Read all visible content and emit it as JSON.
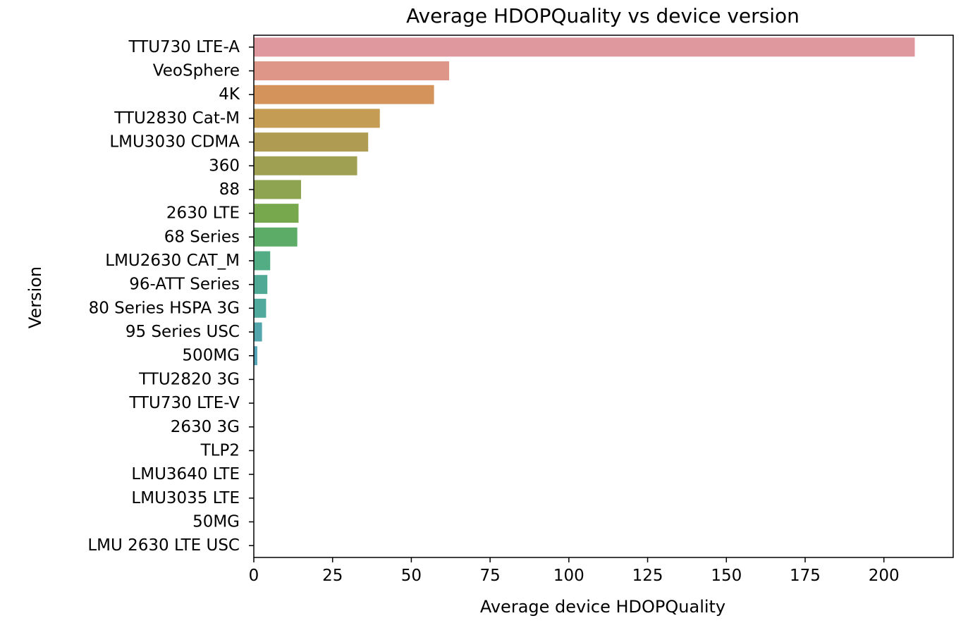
{
  "chart_data": {
    "type": "bar",
    "orientation": "horizontal",
    "title": "Average HDOPQuality vs device version",
    "xlabel": "Average device HDOPQuality",
    "ylabel": "Version",
    "xlim": [
      0,
      222
    ],
    "xticks": [
      0,
      25,
      50,
      75,
      100,
      125,
      150,
      175,
      200
    ],
    "grid": false,
    "categories": [
      "TTU730 LTE-A",
      "VeoSphere",
      "4K",
      "TTU2830 Cat-M",
      "LMU3030 CDMA",
      "360",
      "88",
      "2630 LTE",
      "68 Series",
      "LMU2630 CAT_M",
      "96-ATT Series",
      "80 Series HSPA 3G",
      "95 Series USC",
      "500MG",
      "TTU2820 3G",
      "TTU730 LTE-V",
      "2630 3G",
      "TLP2",
      "LMU3640 LTE",
      "LMU3035 LTE",
      "50MG",
      "LMU 2630 LTE USC"
    ],
    "values": [
      209.8,
      62.0,
      57.2,
      40.0,
      36.3,
      32.8,
      15.0,
      14.2,
      13.8,
      5.2,
      4.3,
      3.9,
      2.6,
      1.1,
      0,
      0,
      0,
      0,
      0,
      0,
      0,
      0
    ],
    "colors": [
      "#e0989f",
      "#dd9687",
      "#d3935b",
      "#c49c54",
      "#b09b53",
      "#9fa052",
      "#8ea451",
      "#77a84e",
      "#5cac67",
      "#52ac84",
      "#50a994",
      "#51a99e",
      "#52a6ab",
      "#55a5b8",
      "#5aa2c9",
      "#6b9ad8",
      "#8a94e0",
      "#a98de0",
      "#c486da",
      "#d688d0",
      "#e18bbd",
      "#e691ad"
    ]
  }
}
